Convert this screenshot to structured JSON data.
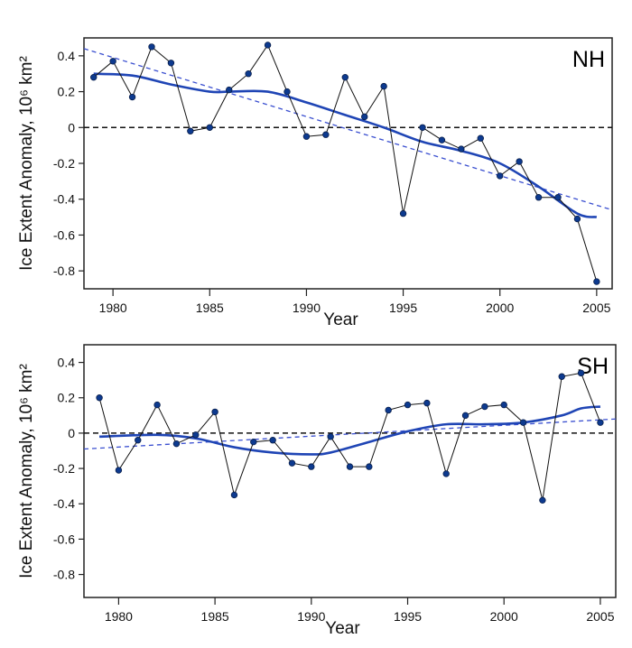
{
  "chart_data": [
    {
      "type": "line",
      "panel_label": "NH",
      "xlabel": "Year",
      "ylabel": "Ice Extent Anomaly, 10⁶ km²",
      "xlim": [
        1978.5,
        2005.8
      ],
      "ylim": [
        -0.9,
        0.5
      ],
      "xticks": [
        1980,
        1985,
        1990,
        1995,
        2000,
        2005
      ],
      "yticks": [
        0.4,
        0.2,
        0.0,
        -0.2,
        -0.4,
        -0.6,
        -0.8
      ],
      "years": [
        1979,
        1980,
        1981,
        1982,
        1983,
        1984,
        1985,
        1986,
        1987,
        1988,
        1989,
        1990,
        1991,
        1992,
        1993,
        1994,
        1995,
        1996,
        1997,
        1998,
        1999,
        2000,
        2001,
        2002,
        2003,
        2004,
        2005
      ],
      "values": [
        0.28,
        0.37,
        0.17,
        0.45,
        0.36,
        -0.02,
        0.0,
        0.21,
        0.3,
        0.46,
        0.2,
        -0.05,
        -0.04,
        0.28,
        0.06,
        0.23,
        -0.48,
        0.0,
        -0.07,
        -0.12,
        -0.06,
        -0.27,
        -0.19,
        -0.39,
        -0.39,
        -0.51,
        -0.86
      ],
      "smooth": {
        "x": [
          1979,
          1981,
          1983,
          1985,
          1986,
          1988,
          1990,
          1992,
          1994,
          1996,
          1998,
          2000,
          2002,
          2004,
          2005
        ],
        "y": [
          0.3,
          0.29,
          0.24,
          0.2,
          0.2,
          0.2,
          0.14,
          0.07,
          0.0,
          -0.08,
          -0.13,
          -0.2,
          -0.33,
          -0.48,
          -0.5
        ]
      },
      "trend": {
        "x": [
          1978.5,
          2005.8
        ],
        "y": [
          0.44,
          -0.46
        ]
      },
      "zero_line": 0.0,
      "colors": {
        "points": "#0d3a8f",
        "line": "#111111",
        "smooth": "#1f45b5",
        "trend": "#3a4fd0",
        "zero": "#111111"
      }
    },
    {
      "type": "line",
      "panel_label": "SH",
      "xlabel": "Year",
      "ylabel": "Ice Extent Anomaly, 10⁶ km²",
      "xlim": [
        1978.2,
        2005.8
      ],
      "ylim": [
        -0.93,
        0.5
      ],
      "xticks": [
        1980,
        1985,
        1990,
        1995,
        2000,
        2005
      ],
      "yticks": [
        0.4,
        0.2,
        0.0,
        -0.2,
        -0.4,
        -0.6,
        -0.8
      ],
      "years": [
        1979,
        1980,
        1981,
        1982,
        1983,
        1984,
        1985,
        1986,
        1987,
        1988,
        1989,
        1990,
        1991,
        1992,
        1993,
        1994,
        1995,
        1996,
        1997,
        1998,
        1999,
        2000,
        2001,
        2002,
        2003,
        2004,
        2005
      ],
      "values": [
        0.2,
        -0.21,
        -0.04,
        0.16,
        -0.06,
        -0.01,
        0.12,
        -0.35,
        -0.05,
        -0.04,
        -0.17,
        -0.19,
        -0.02,
        -0.19,
        -0.19,
        0.13,
        0.16,
        0.17,
        -0.23,
        0.1,
        0.15,
        0.16,
        0.06,
        -0.38,
        0.32,
        0.34,
        0.06
      ],
      "smooth": {
        "x": [
          1979,
          1982,
          1984,
          1986,
          1988,
          1990,
          1991,
          1993,
          1995,
          1997,
          1999,
          2001,
          2003,
          2004,
          2005
        ],
        "y": [
          -0.02,
          -0.01,
          -0.03,
          -0.08,
          -0.11,
          -0.12,
          -0.11,
          -0.05,
          0.01,
          0.05,
          0.05,
          0.06,
          0.1,
          0.14,
          0.15
        ]
      },
      "trend": {
        "x": [
          1978.2,
          2005.8
        ],
        "y": [
          -0.09,
          0.08
        ]
      },
      "zero_line": 0.0,
      "colors": {
        "points": "#0d3a8f",
        "line": "#111111",
        "smooth": "#1f45b5",
        "trend": "#3a4fd0",
        "zero": "#111111"
      }
    }
  ]
}
